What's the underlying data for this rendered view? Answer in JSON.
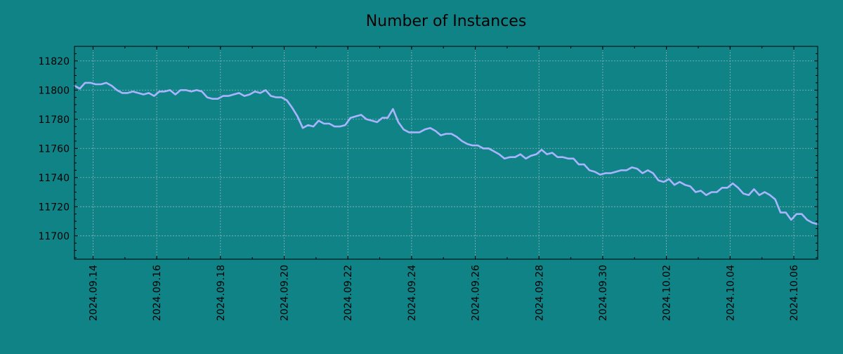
{
  "colors": {
    "background": "#108387",
    "plot_background": "#108387",
    "line": "#a9b4ff",
    "grid": "#8fb6b6",
    "axis": "#000000"
  },
  "chart_data": {
    "type": "line",
    "title": "Number of Instances",
    "xlabel": "",
    "ylabel": "",
    "grid": true,
    "legend": "none",
    "x_tick_labels": [
      "2024.09.14",
      "2024.09.16",
      "2024.09.18",
      "2024.09.20",
      "2024.09.22",
      "2024.09.24",
      "2024.09.26",
      "2024.09.28",
      "2024.09.30",
      "2024.10.02",
      "2024.10.04",
      "2024.10.06"
    ],
    "y_tick_labels": [
      "11700",
      "11720",
      "11740",
      "11760",
      "11780",
      "11800",
      "11820"
    ],
    "xlim": [
      "2024-09-13 10:00",
      "2024-10-06 18:00"
    ],
    "ylim": [
      11684,
      11830
    ],
    "series": [
      {
        "x": [
          "2024-09-13 10:00",
          "2024-09-13 14:00",
          "2024-09-13 18:00",
          "2024-09-13 22:00",
          "2024-09-14 02:00",
          "2024-09-14 06:00",
          "2024-09-14 10:00",
          "2024-09-14 14:00",
          "2024-09-14 18:00",
          "2024-09-14 22:00",
          "2024-09-15 02:00",
          "2024-09-15 06:00",
          "2024-09-15 10:00",
          "2024-09-15 14:00",
          "2024-09-15 18:00",
          "2024-09-15 22:00",
          "2024-09-16 02:00",
          "2024-09-16 06:00",
          "2024-09-16 10:00",
          "2024-09-16 14:00",
          "2024-09-16 18:00",
          "2024-09-16 22:00",
          "2024-09-17 02:00",
          "2024-09-17 06:00",
          "2024-09-17 10:00",
          "2024-09-17 14:00",
          "2024-09-17 18:00",
          "2024-09-17 22:00",
          "2024-09-18 02:00",
          "2024-09-18 06:00",
          "2024-09-18 10:00",
          "2024-09-18 14:00",
          "2024-09-18 18:00",
          "2024-09-18 22:00",
          "2024-09-19 02:00",
          "2024-09-19 06:00",
          "2024-09-19 10:00",
          "2024-09-19 14:00",
          "2024-09-19 18:00",
          "2024-09-19 22:00",
          "2024-09-20 02:00",
          "2024-09-20 06:00",
          "2024-09-20 10:00",
          "2024-09-20 14:00",
          "2024-09-20 18:00",
          "2024-09-20 22:00",
          "2024-09-21 02:00",
          "2024-09-21 06:00",
          "2024-09-21 10:00",
          "2024-09-21 14:00",
          "2024-09-21 18:00",
          "2024-09-21 22:00",
          "2024-09-22 02:00",
          "2024-09-22 06:00",
          "2024-09-22 10:00",
          "2024-09-22 14:00",
          "2024-09-22 18:00",
          "2024-09-22 22:00",
          "2024-09-23 02:00",
          "2024-09-23 06:00",
          "2024-09-23 10:00",
          "2024-09-23 14:00",
          "2024-09-23 18:00",
          "2024-09-23 22:00",
          "2024-09-24 02:00",
          "2024-09-24 06:00",
          "2024-09-24 10:00",
          "2024-09-24 14:00",
          "2024-09-24 18:00",
          "2024-09-24 22:00",
          "2024-09-25 02:00",
          "2024-09-25 06:00",
          "2024-09-25 10:00",
          "2024-09-25 14:00",
          "2024-09-25 18:00",
          "2024-09-25 22:00",
          "2024-09-26 02:00",
          "2024-09-26 06:00",
          "2024-09-26 10:00",
          "2024-09-26 14:00",
          "2024-09-26 18:00",
          "2024-09-26 22:00",
          "2024-09-27 02:00",
          "2024-09-27 06:00",
          "2024-09-27 10:00",
          "2024-09-27 14:00",
          "2024-09-27 18:00",
          "2024-09-27 22:00",
          "2024-09-28 02:00",
          "2024-09-28 06:00",
          "2024-09-28 10:00",
          "2024-09-28 14:00",
          "2024-09-28 18:00",
          "2024-09-28 22:00",
          "2024-09-29 02:00",
          "2024-09-29 06:00",
          "2024-09-29 10:00",
          "2024-09-29 14:00",
          "2024-09-29 18:00",
          "2024-09-29 22:00",
          "2024-09-30 02:00",
          "2024-09-30 06:00",
          "2024-09-30 10:00",
          "2024-09-30 14:00",
          "2024-09-30 18:00",
          "2024-09-30 22:00",
          "2024-10-01 02:00",
          "2024-10-01 06:00",
          "2024-10-01 10:00",
          "2024-10-01 14:00",
          "2024-10-01 18:00",
          "2024-10-01 22:00",
          "2024-10-02 02:00",
          "2024-10-02 06:00",
          "2024-10-02 10:00",
          "2024-10-02 14:00",
          "2024-10-02 18:00",
          "2024-10-02 22:00",
          "2024-10-03 02:00",
          "2024-10-03 06:00",
          "2024-10-03 10:00",
          "2024-10-03 14:00",
          "2024-10-03 18:00",
          "2024-10-03 22:00",
          "2024-10-04 02:00",
          "2024-10-04 06:00",
          "2024-10-04 10:00",
          "2024-10-04 14:00",
          "2024-10-04 18:00",
          "2024-10-04 22:00",
          "2024-10-05 02:00",
          "2024-10-05 06:00",
          "2024-10-05 10:00",
          "2024-10-05 14:00",
          "2024-10-05 18:00",
          "2024-10-05 22:00",
          "2024-10-06 02:00",
          "2024-10-06 06:00",
          "2024-10-06 10:00",
          "2024-10-06 14:00",
          "2024-10-06 18:00"
        ],
        "y": [
          11803,
          11801,
          11805,
          11805,
          11804,
          11804,
          11805,
          11803,
          11800,
          11798,
          11798,
          11799,
          11798,
          11797,
          11798,
          11796,
          11799,
          11799,
          11800,
          11797,
          11800,
          11800,
          11799,
          11800,
          11799,
          11795,
          11794,
          11794,
          11796,
          11796,
          11797,
          11798,
          11796,
          11797,
          11799,
          11798,
          11800,
          11796,
          11795,
          11795,
          11793,
          11788,
          11782,
          11774,
          11776,
          11775,
          11779,
          11777,
          11777,
          11775,
          11775,
          11776,
          11781,
          11782,
          11783,
          11780,
          11779,
          11778,
          11781,
          11781,
          11787,
          11778,
          11773,
          11771,
          11771,
          11771,
          11773,
          11774,
          11772,
          11769,
          11770,
          11770,
          11768,
          11765,
          11763,
          11762,
          11762,
          11760,
          11760,
          11758,
          11756,
          11753,
          11754,
          11754,
          11756,
          11753,
          11755,
          11756,
          11759,
          11756,
          11757,
          11754,
          11754,
          11753,
          11753,
          11749,
          11749,
          11745,
          11744,
          11742,
          11743,
          11743,
          11744,
          11745,
          11745,
          11747,
          11746,
          11743,
          11745,
          11743,
          11738,
          11737,
          11739,
          11735,
          11737,
          11735,
          11734,
          11730,
          11731,
          11728,
          11730,
          11730,
          11733,
          11733,
          11736,
          11733,
          11729,
          11728,
          11732,
          11728,
          11730,
          11728,
          11725,
          11716,
          11716,
          11711,
          11715,
          11715,
          11711,
          11709,
          11708
        ]
      }
    ]
  }
}
